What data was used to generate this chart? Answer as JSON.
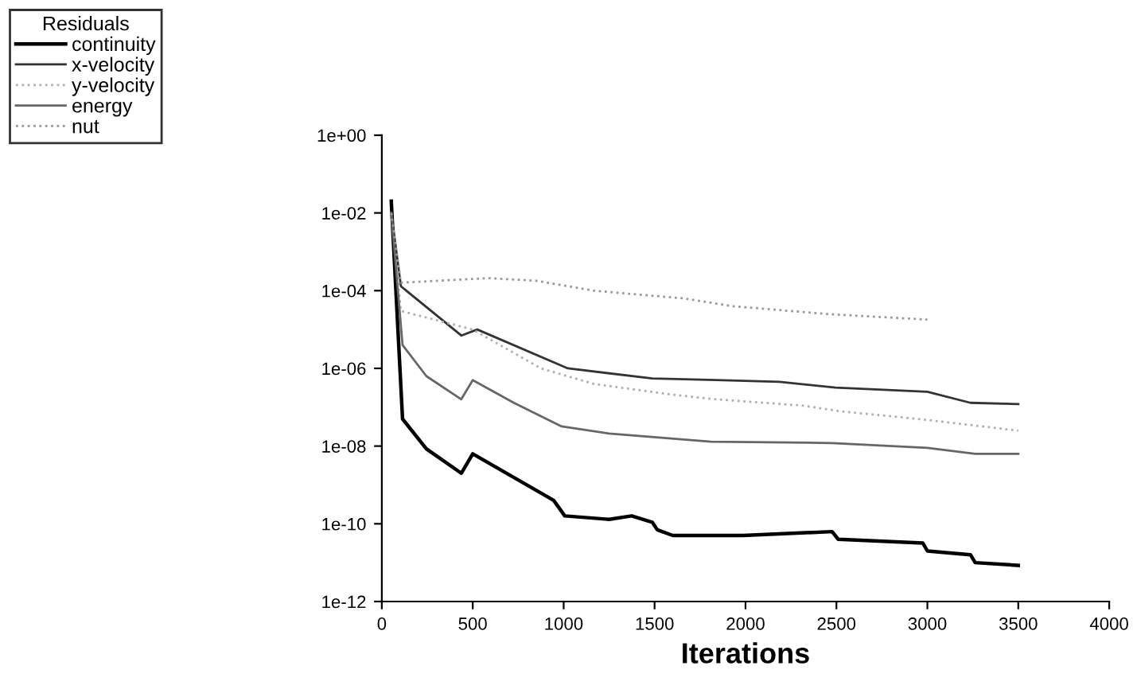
{
  "chart_data": {
    "type": "line",
    "xlabel": "Iterations",
    "legend_title": "Residuals",
    "legend": "top left",
    "log": "y",
    "grid": false,
    "marker": "none",
    "xlim": [
      0,
      4000
    ],
    "xticks": [
      0,
      500,
      1000,
      1500,
      2000,
      2500,
      3000,
      3500,
      4000
    ],
    "ylim": [
      1e-12,
      1
    ],
    "yticks": [
      {
        "value": 1e-12,
        "label": "1e-12"
      },
      {
        "value": 1e-10,
        "label": "1e-10"
      },
      {
        "value": 1e-08,
        "label": "1e-08"
      },
      {
        "value": 1e-06,
        "label": "1e-06"
      },
      {
        "value": 0.0001,
        "label": "1e-04"
      },
      {
        "value": 0.01,
        "label": "1e-02"
      },
      {
        "value": 1,
        "label": "1e+00"
      }
    ],
    "series": [
      {
        "name": "continuity",
        "color": "#000000",
        "line_style": "solid",
        "x": [
          52,
          114,
          245,
          437,
          500,
          945,
          1006,
          1250,
          1374,
          1487,
          1515,
          1600,
          1986,
          2476,
          2510,
          2975,
          3000,
          3237,
          3263,
          3500
        ],
        "values": [
          0.02,
          5e-08,
          8.5e-09,
          2e-09,
          6.3e-09,
          4e-10,
          1.6e-10,
          1.3e-10,
          1.6e-10,
          1.1e-10,
          7e-11,
          5e-11,
          5e-11,
          6.3e-11,
          4e-11,
          3.2e-11,
          2e-11,
          1.6e-11,
          1e-11,
          8.5e-12
        ]
      },
      {
        "name": "x-velocity",
        "color": "#333333",
        "line_style": "solid",
        "x": [
          52,
          105,
          437,
          525,
          1023,
          1487,
          1837,
          2187,
          2494,
          3000,
          3237,
          3500
        ],
        "values": [
          0.01,
          0.00013,
          7e-06,
          1e-05,
          1e-06,
          5.5e-07,
          5e-07,
          4.5e-07,
          3.2e-07,
          2.5e-07,
          1.3e-07,
          1.2e-07
        ]
      },
      {
        "name": "y-velocity",
        "color": "#b0b0b0",
        "line_style": "dotted",
        "x": [
          52,
          105,
          500,
          875,
          1164,
          1600,
          1837,
          2318,
          2510,
          3000,
          3500
        ],
        "values": [
          0.01,
          3e-05,
          1e-05,
          1e-06,
          4e-07,
          2.1e-07,
          1.6e-07,
          1.1e-07,
          8e-08,
          4.7e-08,
          2.5e-08
        ]
      },
      {
        "name": "energy",
        "color": "#666666",
        "line_style": "solid",
        "x": [
          52,
          114,
          245,
          437,
          500,
          726,
          989,
          1250,
          1810,
          2476,
          3000,
          3263,
          3500
        ],
        "values": [
          0.01,
          4e-06,
          6.3e-07,
          1.6e-07,
          5e-07,
          1.3e-07,
          3.2e-08,
          2.1e-08,
          1.3e-08,
          1.2e-08,
          9e-09,
          6.3e-09,
          6.3e-09
        ]
      },
      {
        "name": "nut",
        "color": "#999999",
        "line_style": "dotted",
        "x": [
          52,
          105,
          586,
          849,
          1164,
          1662,
          1925,
          2450,
          3000
        ],
        "values": [
          0.01,
          0.00016,
          0.00021,
          0.00018,
          0.0001,
          6.3e-05,
          4e-05,
          2.5e-05,
          1.8e-05
        ]
      }
    ]
  }
}
